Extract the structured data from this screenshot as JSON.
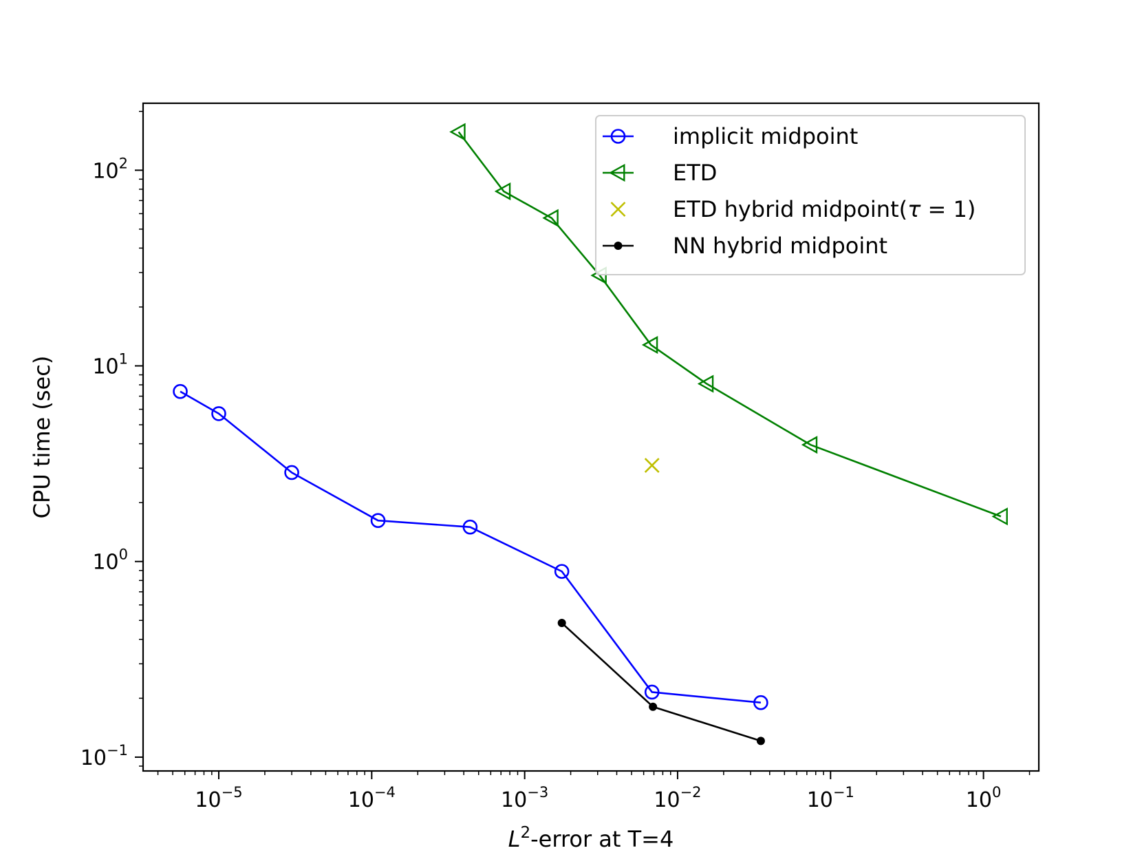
{
  "chart_data": {
    "type": "line",
    "xscale": "log",
    "yscale": "log",
    "xlabel_main": "L",
    "xlabel_sup": "2",
    "xlabel_rest": "-error at T=4",
    "ylabel": "CPU time (sec)",
    "xlim": [
      3.2e-06,
      2.3
    ],
    "ylim": [
      0.085,
      220
    ],
    "x_ticks": [
      {
        "base": "10",
        "exp": "−5",
        "value": 1e-05
      },
      {
        "base": "10",
        "exp": "−4",
        "value": 0.0001
      },
      {
        "base": "10",
        "exp": "−3",
        "value": 0.001
      },
      {
        "base": "10",
        "exp": "−2",
        "value": 0.01
      },
      {
        "base": "10",
        "exp": "−1",
        "value": 0.1
      },
      {
        "base": "10",
        "exp": "0",
        "value": 1
      }
    ],
    "y_ticks": [
      {
        "base": "10",
        "exp": "−1",
        "value": 0.1
      },
      {
        "base": "10",
        "exp": "0",
        "value": 1
      },
      {
        "base": "10",
        "exp": "1",
        "value": 10
      },
      {
        "base": "10",
        "exp": "2",
        "value": 100
      }
    ],
    "legend_position": "top-right",
    "series": [
      {
        "name": "implicit midpoint",
        "color": "#0000ff",
        "marker": "circle",
        "line": true,
        "x": [
          5.6e-06,
          1e-05,
          3e-05,
          0.00011,
          0.00044,
          0.00175,
          0.0068,
          0.035
        ],
        "y": [
          7.4,
          5.7,
          2.85,
          1.62,
          1.5,
          0.89,
          0.215,
          0.19
        ]
      },
      {
        "name": "ETD",
        "color": "#008000",
        "marker": "triangle-left",
        "line": true,
        "x": [
          0.00037,
          0.00073,
          0.0015,
          0.0031,
          0.0067,
          0.0155,
          0.074,
          1.3
        ],
        "y": [
          157,
          78,
          57,
          29,
          12.8,
          8.1,
          3.95,
          1.7
        ]
      },
      {
        "name": "ETD hybrid midpoint(",
        "name_tau": "τ",
        "name_rest": " = 1)",
        "color": "#bfbf00",
        "marker": "x",
        "line": false,
        "x": [
          0.0068
        ],
        "y": [
          3.1
        ]
      },
      {
        "name": "NN hybrid midpoint",
        "color": "#000000",
        "marker": "dot",
        "line": true,
        "x": [
          0.00175,
          0.0069,
          0.035
        ],
        "y": [
          0.485,
          0.181,
          0.121
        ]
      }
    ]
  }
}
